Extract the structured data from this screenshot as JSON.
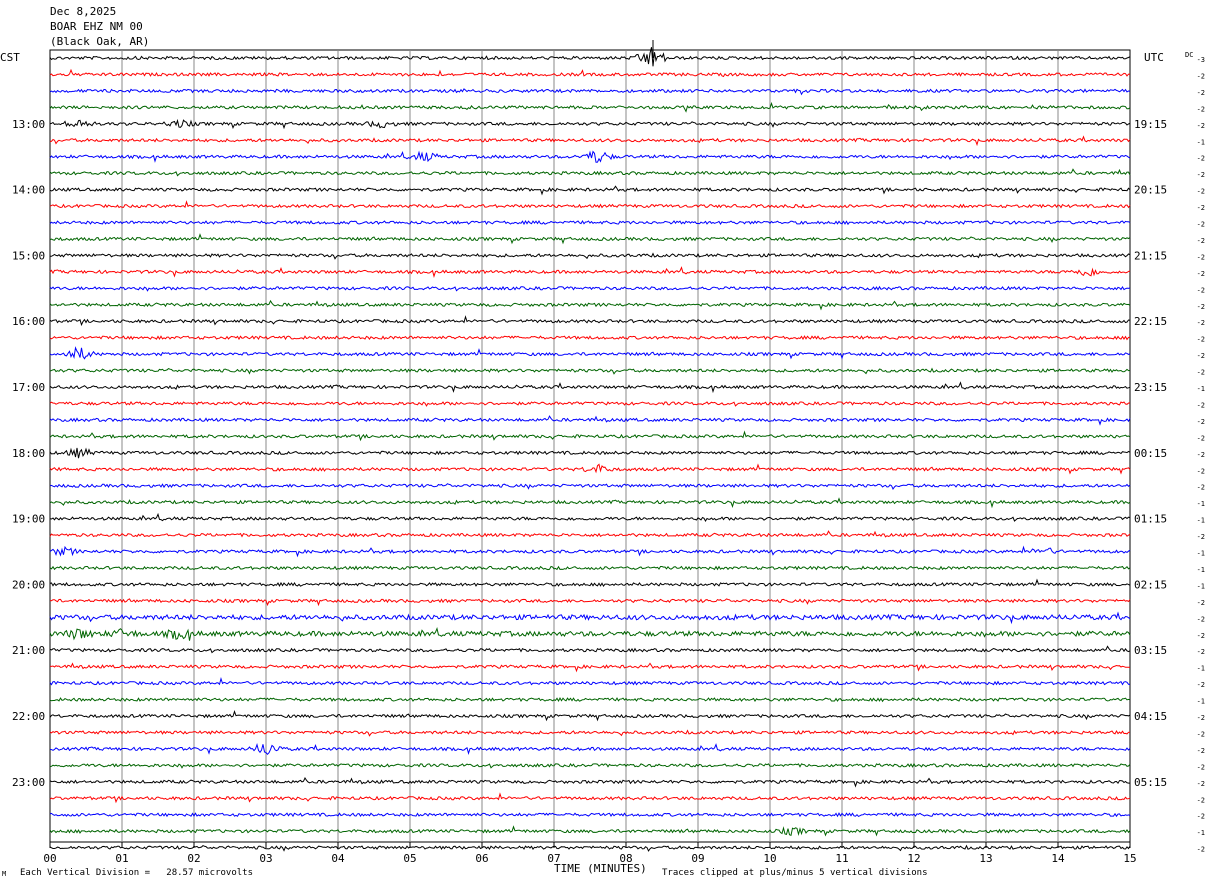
{
  "header": {
    "date": "Dec 8,2025",
    "station": "BOAR EHZ NM 00",
    "location": "(Black Oak, AR)"
  },
  "chart_data": {
    "type": "line",
    "description_type": "helicorder",
    "left_tz": "CST",
    "right_tz": "UTC",
    "dc_label": "DC",
    "xlabel": "TIME (MINUTES)",
    "x_ticks": [
      "00",
      "01",
      "02",
      "03",
      "04",
      "05",
      "06",
      "07",
      "08",
      "09",
      "10",
      "11",
      "12",
      "13",
      "14",
      "15"
    ],
    "xlim": [
      0,
      15
    ],
    "left_hour_labels": [
      "13:00",
      "14:00",
      "15:00",
      "16:00",
      "17:00",
      "18:00",
      "19:00",
      "20:00",
      "21:00",
      "22:00",
      "23:00"
    ],
    "right_hour_labels": [
      "19:15",
      "20:15",
      "21:15",
      "22:15",
      "23:15",
      "00:15",
      "01:15",
      "02:15",
      "03:15",
      "04:15",
      "05:15"
    ],
    "first_labeled_row": 4,
    "rows_per_hour": 4,
    "trace_colors": [
      "#000000",
      "#ff0000",
      "#0000ff",
      "#006400"
    ],
    "dc_offsets": [
      -3,
      -2,
      -2,
      -2,
      -2,
      -1,
      -2,
      -2,
      -2,
      -2,
      -2,
      -2,
      -2,
      -2,
      -2,
      -2,
      -2,
      -2,
      -2,
      -2,
      -1,
      -2,
      -2,
      -2,
      -2,
      -2,
      -2,
      -1,
      -1,
      -2,
      -1,
      -1,
      -1,
      -2,
      -2,
      -2,
      -2,
      -1,
      -2,
      -1,
      -2,
      -2,
      -2,
      -2,
      -2,
      -2,
      -2,
      -1,
      -2
    ],
    "footer_left": "Each Vertical Division =   28.57 microvolts",
    "footer_right": "Traces clipped at plus/minus 5 vertical divisions",
    "corner_mark": "M"
  }
}
